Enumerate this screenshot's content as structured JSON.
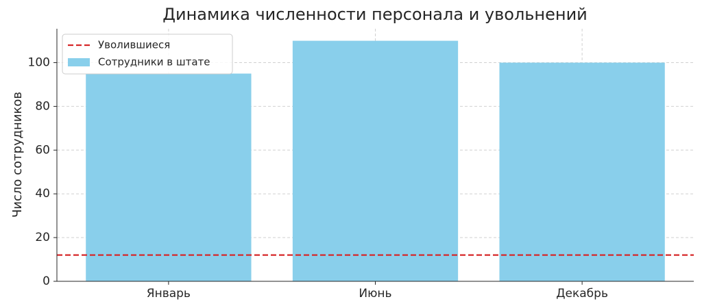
{
  "chart_data": {
    "type": "bar",
    "title": "Динамика численности персонала и увольнений",
    "ylabel": "Число сотрудников",
    "categories": [
      "Январь",
      "Июнь",
      "Декабрь"
    ],
    "series": [
      {
        "name": "Сотрудники в штате",
        "color": "#89cfeb",
        "values": [
          95,
          110,
          100
        ]
      }
    ],
    "hline": {
      "name": "Уволившиеся",
      "color": "#d62728",
      "value": 12
    },
    "ylim": [
      0,
      115.5
    ],
    "yticks": [
      0,
      20,
      40,
      60,
      80,
      100
    ],
    "grid": true,
    "legend": "upper left"
  }
}
